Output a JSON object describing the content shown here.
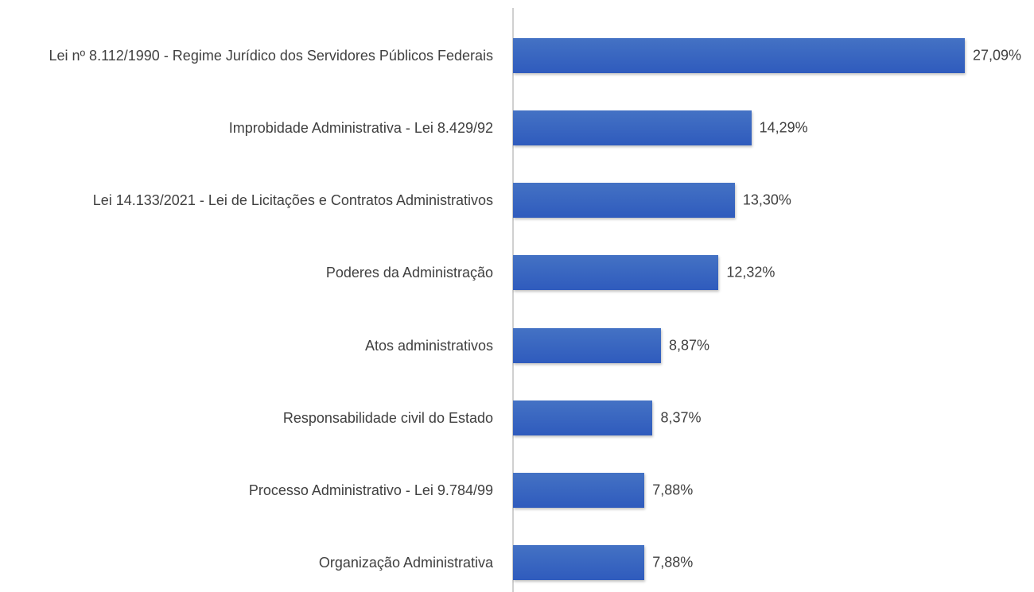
{
  "chart_data": {
    "type": "bar",
    "orientation": "horizontal",
    "categories": [
      "Lei nº 8.112/1990 - Regime Jurídico dos Servidores Públicos Federais",
      "Improbidade Administrativa - Lei 8.429/92",
      "Lei 14.133/2021 - Lei de Licitações e Contratos Administrativos",
      "Poderes da Administração",
      "Atos administrativos",
      "Responsabilidade civil do Estado",
      "Processo Administrativo - Lei 9.784/99",
      "Organização Administrativa"
    ],
    "values": [
      27.09,
      14.29,
      13.3,
      12.32,
      8.87,
      8.37,
      7.88,
      7.88
    ],
    "value_labels": [
      "27,09%",
      "14,29%",
      "13,30%",
      "12,32%",
      "8,87%",
      "8,37%",
      "7,88%",
      "7,88%"
    ],
    "color": "#4472c4"
  }
}
